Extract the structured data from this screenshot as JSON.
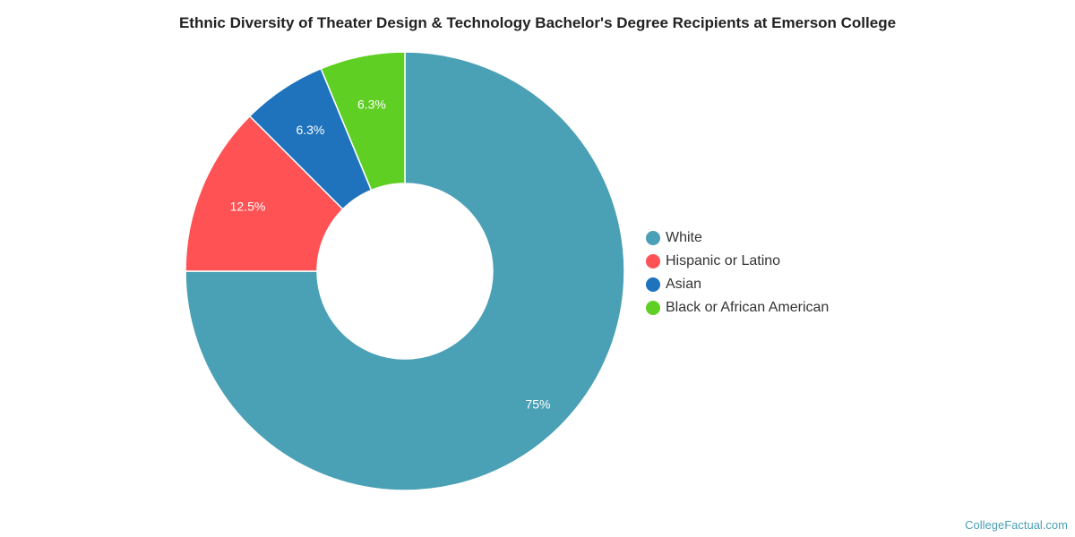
{
  "chart_data": {
    "type": "pie",
    "variant": "donut",
    "title": "Ethnic Diversity of Theater Design & Technology Bachelor's Degree Recipients at Emerson College",
    "categories": [
      "White",
      "Hispanic or Latino",
      "Asian",
      "Black or African American"
    ],
    "values": [
      75,
      12.5,
      6.25,
      6.25
    ],
    "data_labels": [
      "75%",
      "12.5%",
      "6.3%",
      "6.3%"
    ],
    "colors": [
      "#4aa0b5",
      "#ff5254",
      "#1f73bc",
      "#60cf24"
    ],
    "legend_position": "right"
  },
  "watermark": "CollegeFactual.com"
}
